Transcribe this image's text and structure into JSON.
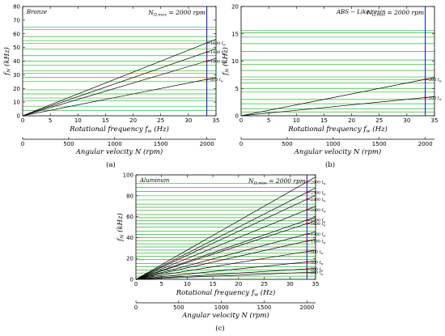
{
  "chart_data": [
    {
      "type": "line",
      "panel_label": "(a)",
      "inset_label": "Bronze",
      "nmax_label": "N",
      "nmax_sub": "Ω,max",
      "nmax_value": "= 2000 rpm",
      "nmax_x": 33.33,
      "ylabel": "f",
      "ylabel_sub": "N",
      "ylabel_unit": "(kHz)",
      "xlabel": "Rotational frequency",
      "xlabel_sym": "f",
      "xlabel_sub": "w",
      "xlabel_unit": "(Hz)",
      "x2label": "Angular velocity",
      "x2label_unit": "N (rpm)",
      "xlim": [
        0,
        35
      ],
      "ylim": [
        0,
        80
      ],
      "x2lim": [
        0,
        2100
      ],
      "xticks": [
        0,
        5,
        10,
        15,
        20,
        25,
        30,
        35
      ],
      "yticks": [
        0,
        10,
        20,
        30,
        40,
        50,
        60,
        70,
        80
      ],
      "x2ticks": [
        0,
        500,
        1000,
        1500,
        2000
      ],
      "natural_frequencies": [
        4,
        7,
        11,
        13,
        16,
        19,
        25,
        28,
        31,
        33,
        37,
        40,
        44,
        49,
        53,
        55,
        58,
        63,
        65
      ],
      "series": [
        {
          "name": "800",
          "label_text": "800 f",
          "label_sub": "w",
          "multiplier": 800
        },
        {
          "name": "1200",
          "label_text": "1200 f",
          "label_sub": "w",
          "multiplier": 1200
        },
        {
          "name": "1400",
          "label_text": "1400 f",
          "label_sub": "w",
          "multiplier": 1400
        },
        {
          "name": "1600",
          "label_text": "1600 f",
          "label_sub": "w",
          "multiplier": 1600
        }
      ],
      "colors": {
        "grid": "#2eb82e",
        "lines": "#000000",
        "nmax": "#1c1cdc",
        "marker": "#e8101e"
      }
    },
    {
      "type": "line",
      "panel_label": "(b)",
      "inset_label": "ABS − Like resin",
      "nmax_label": "N",
      "nmax_sub": "Ω,max",
      "nmax_value": "= 2000 rpm",
      "nmax_x": 33.33,
      "ylabel": "f",
      "ylabel_sub": "N",
      "ylabel_unit": "(kHz)",
      "xlabel": "Rotational frequency",
      "xlabel_sym": "f",
      "xlabel_sub": "w",
      "xlabel_unit": "(Hz)",
      "x2label": "Angular velocity",
      "x2label_unit": "N (rpm)",
      "xlim": [
        0,
        35
      ],
      "ylim": [
        0,
        20
      ],
      "x2lim": [
        0,
        2100
      ],
      "xticks": [
        0,
        5,
        10,
        15,
        20,
        25,
        30,
        35
      ],
      "yticks": [
        0,
        5,
        10,
        15,
        20
      ],
      "x2ticks": [
        0,
        500,
        1000,
        1500,
        2000
      ],
      "natural_frequencies": [
        0.7,
        1.3,
        2.2,
        3.0,
        4.4,
        5.0,
        6.0,
        6.6,
        7.1,
        8.3,
        9.4,
        10.2,
        11.8,
        13.2,
        14.4,
        15.2,
        15.6
      ],
      "series": [
        {
          "name": "100",
          "label_text": "100 f",
          "label_sub": "w",
          "multiplier": 100
        },
        {
          "name": "200",
          "label_text": "200 f",
          "label_sub": "w",
          "multiplier": 200
        }
      ],
      "colors": {
        "grid": "#2eb82e",
        "lines": "#000000",
        "nmax": "#1c1cdc",
        "marker": "#e8101e"
      }
    },
    {
      "type": "line",
      "panel_label": "(c)",
      "inset_label": "Aluminum",
      "nmax_label": "N",
      "nmax_sub": "Ω,max",
      "nmax_value": "= 2000 rpm",
      "nmax_x": 33.33,
      "ylabel": "f",
      "ylabel_sub": "N",
      "ylabel_unit": "(kHz)",
      "xlabel": "Rotational frequency",
      "xlabel_sym": "f",
      "xlabel_sub": "w",
      "xlabel_unit": "(Hz)",
      "x2label": "Angular velocity",
      "x2label_unit": "N (rpm)",
      "xlim": [
        0,
        35
      ],
      "ylim": [
        0,
        100
      ],
      "x2lim": [
        0,
        2100
      ],
      "xticks": [
        0,
        5,
        10,
        15,
        20,
        25,
        30,
        35
      ],
      "yticks": [
        0,
        20,
        40,
        60,
        80,
        100
      ],
      "x2ticks": [
        0,
        500,
        1000,
        1500,
        2000
      ],
      "natural_frequencies": [
        3,
        6,
        9,
        12,
        15,
        19,
        22,
        25,
        28,
        31,
        34,
        37,
        40,
        43,
        46,
        50,
        53,
        56,
        59,
        62,
        66,
        69,
        72,
        76,
        80,
        84,
        88,
        92
      ],
      "series": [
        {
          "name": "200",
          "label_text": "200 f",
          "label_sub": "w",
          "multiplier": 200
        },
        {
          "name": "300",
          "label_text": "300 f",
          "label_sub": "w",
          "multiplier": 300
        },
        {
          "name": "500",
          "label_text": "500 f",
          "label_sub": "w",
          "multiplier": 500
        },
        {
          "name": "800",
          "label_text": "800 f",
          "label_sub": "w",
          "multiplier": 800
        },
        {
          "name": "1100",
          "label_text": "1100 f",
          "label_sub": "w",
          "multiplier": 1100
        },
        {
          "name": "1300",
          "label_text": "1300 f",
          "label_sub": "w",
          "multiplier": 1300
        },
        {
          "name": "1600",
          "label_text": "1600 f",
          "label_sub": "w",
          "multiplier": 1600
        },
        {
          "name": "1700",
          "label_text": "1700 f",
          "label_sub": "w",
          "multiplier": 1700
        },
        {
          "name": "2000",
          "label_text": "2000 f",
          "label_sub": "w",
          "multiplier": 2000
        },
        {
          "name": "2300",
          "label_text": "2300 f",
          "label_sub": "w",
          "multiplier": 2300
        },
        {
          "name": "2500",
          "label_text": "2500 f",
          "label_sub": "w",
          "multiplier": 2500
        },
        {
          "name": "2800",
          "label_text": "2800 f",
          "label_sub": "w",
          "multiplier": 2800
        }
      ],
      "colors": {
        "grid": "#2eb82e",
        "lines": "#000000",
        "nmax": "#1c1cdc",
        "marker": "#e8101e"
      }
    }
  ]
}
